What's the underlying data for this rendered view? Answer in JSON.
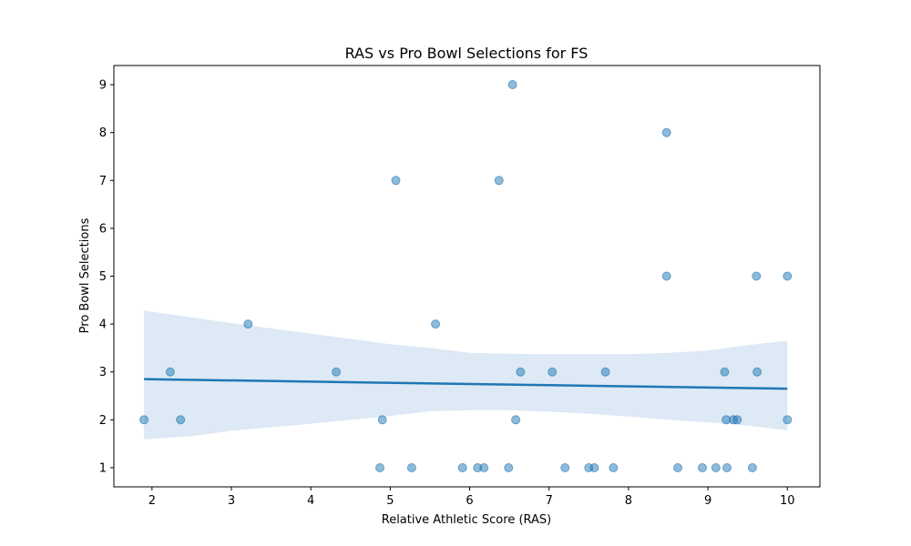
{
  "chart_data": {
    "type": "scatter",
    "title": "RAS vs Pro Bowl Selections for FS",
    "xlabel": "Relative Athletic Score (RAS)",
    "ylabel": "Pro Bowl Selections",
    "xlim": [
      1.52,
      10.41
    ],
    "ylim": [
      0.6,
      9.4
    ],
    "x_ticks": [
      "2",
      "3",
      "4",
      "5",
      "6",
      "7",
      "8",
      "9",
      "10"
    ],
    "y_ticks": [
      "1",
      "2",
      "3",
      "4",
      "5",
      "6",
      "7",
      "8",
      "9"
    ],
    "grid": false,
    "legend": "none",
    "colors": {
      "points": "#1f77b4",
      "regression_line": "#1f77b4",
      "confidence_band": "#c6dbef"
    },
    "series": [
      {
        "points": [
          [
            1.9,
            2
          ],
          [
            2.23,
            3
          ],
          [
            2.36,
            2
          ],
          [
            3.21,
            4
          ],
          [
            4.32,
            3
          ],
          [
            4.87,
            1
          ],
          [
            4.9,
            2
          ],
          [
            5.07,
            7
          ],
          [
            5.27,
            1
          ],
          [
            5.57,
            4
          ],
          [
            5.91,
            1
          ],
          [
            6.1,
            1
          ],
          [
            6.18,
            1
          ],
          [
            6.37,
            7
          ],
          [
            6.49,
            1
          ],
          [
            6.54,
            9
          ],
          [
            6.58,
            2
          ],
          [
            6.64,
            3
          ],
          [
            7.04,
            3
          ],
          [
            7.2,
            1
          ],
          [
            7.5,
            1
          ],
          [
            7.57,
            1
          ],
          [
            7.71,
            3
          ],
          [
            7.81,
            1
          ],
          [
            8.48,
            8
          ],
          [
            8.48,
            5
          ],
          [
            8.62,
            1
          ],
          [
            8.93,
            1
          ],
          [
            9.1,
            1
          ],
          [
            9.21,
            3
          ],
          [
            9.23,
            2
          ],
          [
            9.24,
            1
          ],
          [
            9.32,
            2
          ],
          [
            9.37,
            2
          ],
          [
            9.56,
            1
          ],
          [
            9.61,
            5
          ],
          [
            9.62,
            3
          ],
          [
            10.0,
            5
          ],
          [
            10.0,
            2
          ]
        ]
      }
    ],
    "regression": {
      "line": [
        [
          1.9,
          2.85
        ],
        [
          10.0,
          2.65
        ]
      ],
      "ci_upper": [
        [
          1.9,
          4.28
        ],
        [
          2.5,
          4.14
        ],
        [
          3.0,
          4.02
        ],
        [
          4.0,
          3.8
        ],
        [
          5.0,
          3.58
        ],
        [
          5.5,
          3.5
        ],
        [
          6.0,
          3.4
        ],
        [
          6.5,
          3.38
        ],
        [
          7.0,
          3.37
        ],
        [
          7.5,
          3.37
        ],
        [
          8.0,
          3.37
        ],
        [
          8.5,
          3.4
        ],
        [
          9.0,
          3.45
        ],
        [
          9.5,
          3.56
        ],
        [
          10.0,
          3.65
        ]
      ],
      "ci_lower": [
        [
          1.9,
          1.59
        ],
        [
          2.5,
          1.66
        ],
        [
          3.0,
          1.77
        ],
        [
          4.0,
          1.92
        ],
        [
          5.0,
          2.08
        ],
        [
          5.5,
          2.18
        ],
        [
          6.0,
          2.2
        ],
        [
          6.5,
          2.2
        ],
        [
          7.0,
          2.17
        ],
        [
          7.5,
          2.13
        ],
        [
          8.0,
          2.07
        ],
        [
          8.5,
          2.0
        ],
        [
          9.0,
          1.95
        ],
        [
          9.5,
          1.88
        ],
        [
          10.0,
          1.78
        ]
      ]
    }
  }
}
